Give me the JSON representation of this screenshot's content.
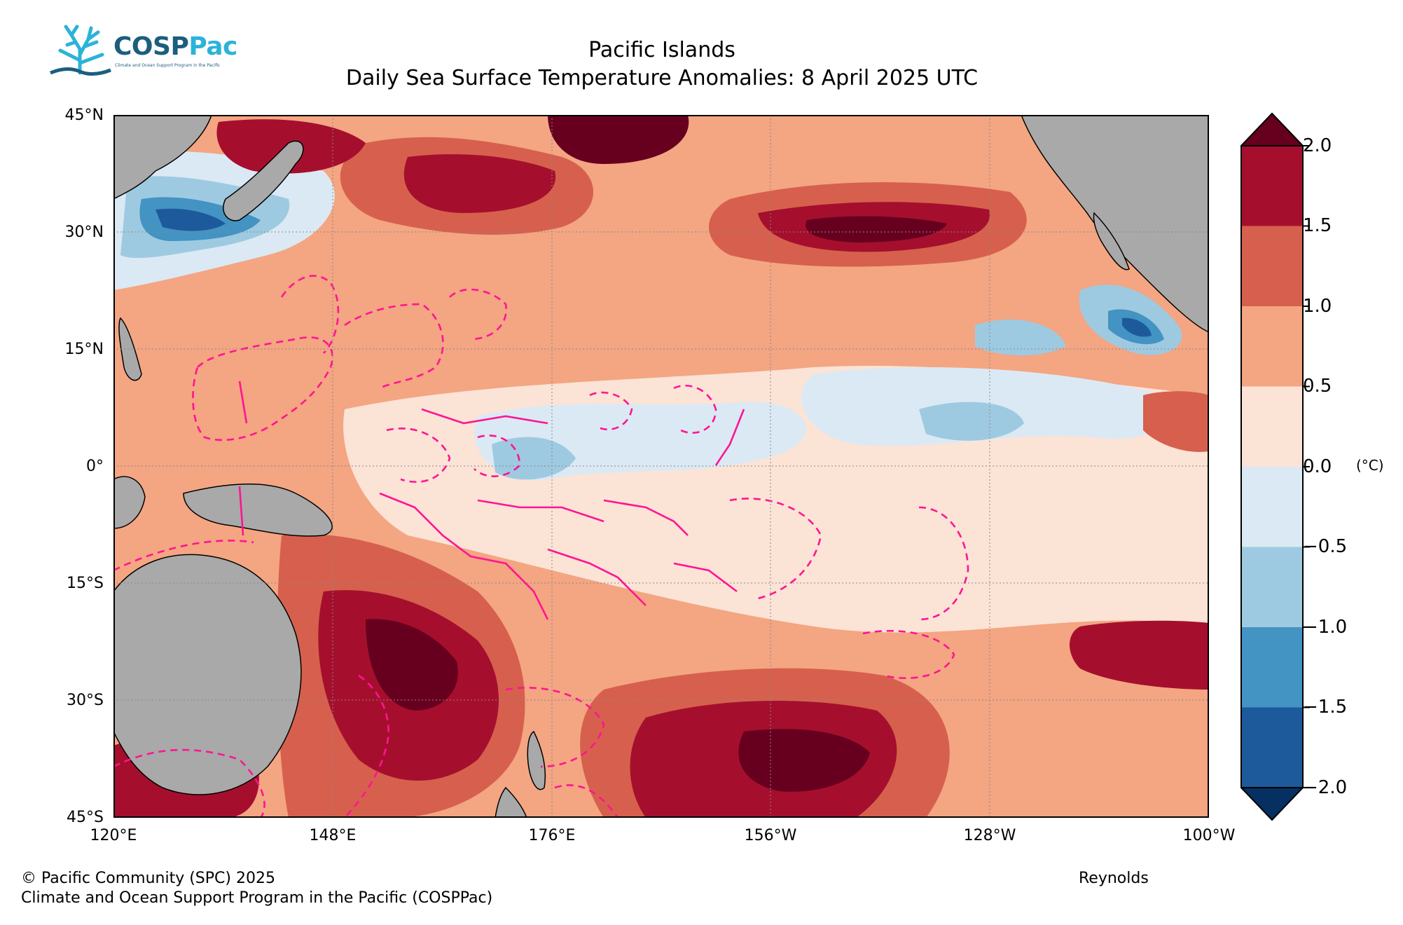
{
  "logo": {
    "name_part1": "COSP",
    "name_part2": "Pac",
    "tagline": "Climate and Ocean Support Program in the Pacific"
  },
  "title": {
    "line1": "Pacific Islands",
    "line2": "Daily Sea Surface Temperature Anomalies: 8 April 2025 UTC"
  },
  "axes": {
    "lat_ticks": [
      "45°N",
      "30°N",
      "15°N",
      "0°",
      "15°S",
      "30°S",
      "45°S"
    ],
    "lon_ticks": [
      "120°E",
      "148°E",
      "176°E",
      "156°W",
      "128°W",
      "100°W"
    ],
    "extent": {
      "lon": [
        "120°E",
        "100°W"
      ],
      "lat": [
        "45°S",
        "45°N"
      ]
    },
    "gridlines": true
  },
  "colorbar": {
    "ticks": [
      "2.0",
      "1.5",
      "1.0",
      "0.5",
      "0.0",
      "−0.5",
      "−1.0",
      "−1.5",
      "−2.0"
    ],
    "unit": "(°C)",
    "levels_high_to_low": [
      "#67001f",
      "#a50f2d",
      "#d6604d",
      "#f4a582",
      "#fbe3d6",
      "#dbe9f4",
      "#9ecae1",
      "#4393c3",
      "#1c5a9c",
      "#053061"
    ],
    "extend": "both"
  },
  "colors": {
    "land": "#a9a9a9",
    "eez_boundary": "#ff1493",
    "grid": "#888888"
  },
  "footer": {
    "copyright": "© Pacific Community (SPC) 2025",
    "program": "Climate and Ocean Support Program in the Pacific (COSPPac)",
    "source": "Reynolds"
  }
}
